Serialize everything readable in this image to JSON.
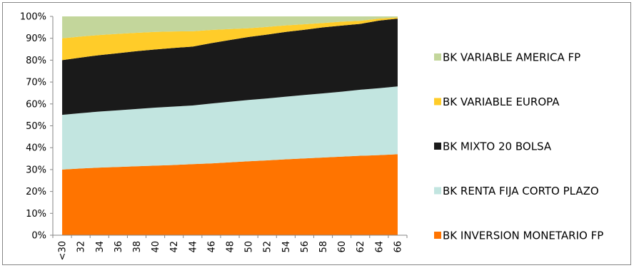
{
  "chart_data": {
    "type": "area",
    "stacked": "percent",
    "categories": [
      "<30",
      "32",
      "34",
      "36",
      "38",
      "40",
      "42",
      "44",
      "46",
      "48",
      "50",
      "52",
      "54",
      "56",
      "58",
      "60",
      "62",
      "64",
      "66"
    ],
    "ylim": [
      0,
      100
    ],
    "y_tick_labels": [
      "0%",
      "10%",
      "20%",
      "30%",
      "40%",
      "50%",
      "60%",
      "70%",
      "80%",
      "90%",
      "100%"
    ],
    "grid": false,
    "legend_position": "right",
    "series": [
      {
        "name": "BK INVERSION MONETARIO FP",
        "color": "#FF7400",
        "values": [
          30,
          30.5,
          30.9,
          31.2,
          31.5,
          31.8,
          32.1,
          32.5,
          32.8,
          33.3,
          33.8,
          34.2,
          34.7,
          35.1,
          35.5,
          35.9,
          36.3,
          36.6,
          37
        ]
      },
      {
        "name": "BK RENTA FIJA CORTO PLAZO",
        "color": "#C2E5E0",
        "values": [
          25,
          25.3,
          25.6,
          25.9,
          26.2,
          26.5,
          26.7,
          26.8,
          27.4,
          27.7,
          28,
          28.3,
          28.6,
          29,
          29.3,
          29.7,
          30.2,
          30.6,
          31
        ]
      },
      {
        "name": "BK MIXTO 20 BOLSA",
        "color": "#1A1A1A",
        "values": [
          25,
          25.4,
          25.8,
          26.1,
          26.4,
          26.6,
          26.8,
          26.9,
          27.6,
          28.2,
          28.8,
          29.2,
          29.6,
          29.8,
          30.2,
          30.2,
          30.1,
          30.9,
          31
        ]
      },
      {
        "name": "BK VARIABLE EUROPA",
        "color": "#FFCC29",
        "values": [
          10,
          9.6,
          9.2,
          8.8,
          8.4,
          8,
          7.5,
          7,
          6,
          5,
          4,
          3.5,
          3,
          2.5,
          2,
          1.8,
          1.4,
          0.9,
          0.5
        ]
      },
      {
        "name": "BK VARIABLE AMERICA FP",
        "color": "#C3D69B",
        "values": [
          10,
          9.2,
          8.5,
          8,
          7.5,
          7.1,
          6.9,
          6.8,
          6.2,
          5.8,
          5.4,
          4.8,
          4.1,
          3.6,
          3,
          2.4,
          2,
          1,
          0.5
        ]
      }
    ]
  }
}
